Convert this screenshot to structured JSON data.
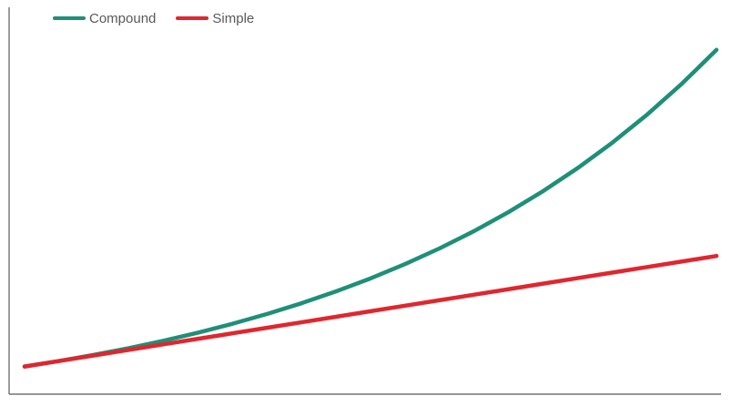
{
  "chart_data": {
    "type": "line",
    "title": "",
    "xlabel": "",
    "ylabel": "",
    "grid": false,
    "legend_position": "top-left",
    "x": [
      0,
      1,
      2,
      3,
      4,
      5,
      6,
      7,
      8,
      9,
      10,
      11,
      12,
      13,
      14,
      15,
      16,
      17,
      18,
      19,
      20
    ],
    "series": [
      {
        "name": "Compound",
        "color": "#1f8f78",
        "values": [
          1.0,
          1.1,
          1.21,
          1.331,
          1.4641,
          1.6105,
          1.7716,
          1.9487,
          2.1436,
          2.3579,
          2.5937,
          2.8531,
          3.1384,
          3.4523,
          3.7975,
          4.1772,
          4.595,
          5.0545,
          5.5599,
          6.1159,
          6.7275
        ]
      },
      {
        "name": "Simple",
        "color": "#e0262e",
        "values": [
          1.0,
          1.1,
          1.2,
          1.3,
          1.4,
          1.5,
          1.6,
          1.7,
          1.8,
          1.9,
          2.0,
          2.1,
          2.2,
          2.3,
          2.4,
          2.5,
          2.6,
          2.7,
          2.8,
          2.9,
          3.0
        ]
      }
    ],
    "xlim": [
      0,
      20
    ],
    "ylim": [
      0.5,
      7.3
    ]
  }
}
